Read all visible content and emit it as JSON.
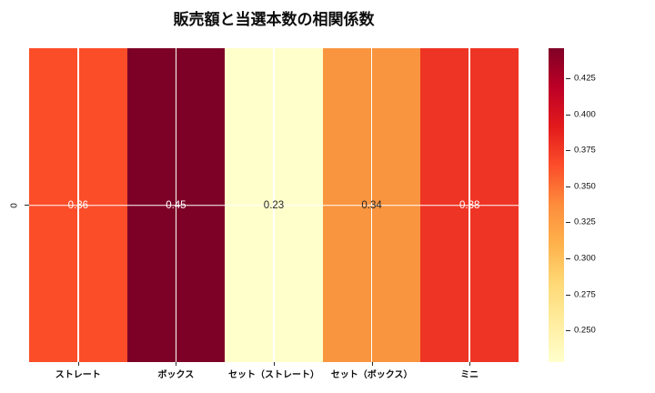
{
  "figure": {
    "background": "#ffffff"
  },
  "chart_data": {
    "type": "heatmap",
    "title": "販売額と当選本数の相関係数",
    "categories": [
      "ストレート",
      "ボックス",
      "セット（ストレート）",
      "セット（ボックス）",
      "ミニ"
    ],
    "rows": [
      "0"
    ],
    "values": [
      [
        0.36,
        0.45,
        0.23,
        0.34,
        0.38
      ]
    ],
    "value_labels": [
      [
        "0.36",
        "0.45",
        "0.23",
        "0.34",
        "0.38"
      ]
    ],
    "cell_colors": [
      [
        "#fb4d28",
        "#7d0026",
        "#ffffcb",
        "#f9953f",
        "#ee3424"
      ]
    ],
    "annot_text_colors": [
      [
        "#ffffff",
        "#ffffff",
        "#262626",
        "#262626",
        "#ffffff"
      ]
    ],
    "grid": true,
    "gridline_color": "#ffffff",
    "colormap": "YlOrRd",
    "colormap_stops_top_to_bottom": [
      "#800026",
      "#bd0026",
      "#e31a1c",
      "#fc4e2a",
      "#fd8d3c",
      "#feb24c",
      "#fed976",
      "#ffeda0",
      "#ffffcc"
    ],
    "colorbar": {
      "position": "right",
      "vmin": 0.228,
      "vmax": 0.446,
      "ticks": [
        "0.425",
        "0.400",
        "0.375",
        "0.350",
        "0.325",
        "0.300",
        "0.275",
        "0.250"
      ]
    }
  }
}
